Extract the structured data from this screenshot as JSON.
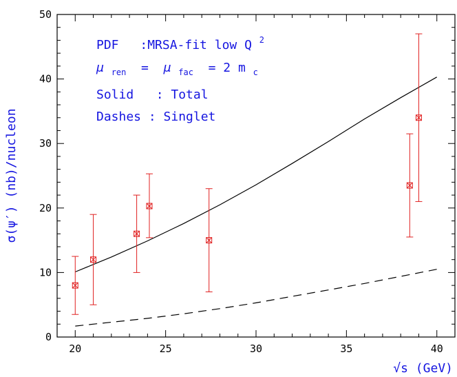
{
  "chart_data": {
    "type": "scatter",
    "xlabel": "√s (GeV)",
    "ylabel": "σ(ψ′) (nb)/nucleon",
    "xlim": [
      19,
      41
    ],
    "ylim": [
      0,
      50
    ],
    "x_ticks": [
      20,
      25,
      30,
      35,
      40
    ],
    "y_ticks": [
      0,
      10,
      20,
      30,
      40,
      50
    ],
    "x_tick_labels": [
      "20",
      "25",
      "30",
      "35",
      "40"
    ],
    "y_tick_labels": [
      "0",
      "10",
      "20",
      "30",
      "40",
      "50"
    ],
    "grid": false,
    "annotations": {
      "pdf": {
        "label": "PDF",
        "value": ":MRSA-fit low Q",
        "sup": "2"
      },
      "mu": {
        "mu1": "μ",
        "sub1": "ren",
        "eq": " = ",
        "mu2": "μ",
        "sub2": "fac",
        "rhs": " = 2 m",
        "sub3": "c"
      },
      "solid": "Solid   : Total",
      "dashes": "Dashes : Singlet"
    },
    "series": [
      {
        "style": "solid",
        "color": "#000000",
        "x": [
          20,
          22,
          24,
          26,
          28,
          30,
          32,
          34,
          36,
          38,
          40
        ],
        "y": [
          10.1,
          12.4,
          14.9,
          17.6,
          20.5,
          23.6,
          26.9,
          30.3,
          33.8,
          37.1,
          40.3
        ]
      },
      {
        "style": "dashed",
        "color": "#000000",
        "x": [
          20,
          22,
          24,
          26,
          28,
          30,
          32,
          34,
          36,
          38,
          40
        ],
        "y": [
          1.7,
          2.3,
          2.9,
          3.6,
          4.4,
          5.3,
          6.3,
          7.3,
          8.3,
          9.4,
          10.5
        ]
      },
      {
        "style": "points",
        "color": "#e02020",
        "points": [
          {
            "x": 20.0,
            "y": 8.0,
            "ylo": 3.5,
            "yhi": 12.5
          },
          {
            "x": 21.0,
            "y": 12.0,
            "ylo": 5.0,
            "yhi": 19.0
          },
          {
            "x": 23.4,
            "y": 16.0,
            "ylo": 10.0,
            "yhi": 22.0
          },
          {
            "x": 24.1,
            "y": 20.3,
            "ylo": 15.4,
            "yhi": 25.3
          },
          {
            "x": 27.4,
            "y": 15.0,
            "ylo": 7.0,
            "yhi": 23.0
          },
          {
            "x": 38.5,
            "y": 23.5,
            "ylo": 15.5,
            "yhi": 31.5
          },
          {
            "x": 39.0,
            "y": 34.0,
            "ylo": 21.0,
            "yhi": 47.0
          }
        ]
      }
    ]
  }
}
